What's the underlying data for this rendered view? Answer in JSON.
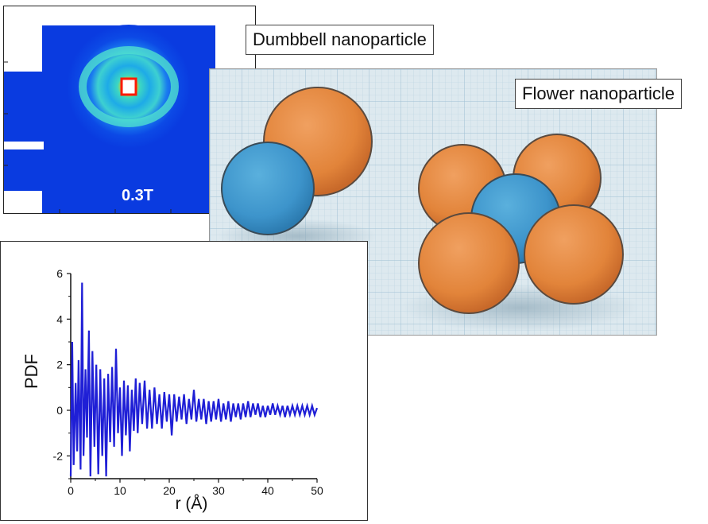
{
  "saxs": {
    "field_label": "0.3T",
    "colors": {
      "background": "#0a3be0",
      "ring": "#33d1d6",
      "center": "#ff2a00"
    }
  },
  "labels": {
    "dumbbell": "Dumbbell nanoparticle",
    "flower": "Flower nanoparticle"
  },
  "scene": {
    "colors": {
      "orange_sphere": "#e48b3c",
      "blue_sphere": "#3f98cf",
      "grid": "#dde9ef"
    }
  },
  "chart_data": {
    "type": "line",
    "xlabel": "r (Å)",
    "ylabel": "PDF",
    "xlim": [
      0,
      50
    ],
    "ylim": [
      -3,
      6
    ],
    "xticks": [
      0,
      10,
      20,
      30,
      40,
      50
    ],
    "yticks": [
      -2,
      0,
      2,
      4,
      6
    ],
    "line_color": "#1f1fd6",
    "series": [
      {
        "x": [
          0,
          0.3,
          0.6,
          1.0,
          1.3,
          1.6,
          2.0,
          2.3,
          2.6,
          3.0,
          3.3,
          3.7,
          4.0,
          4.4,
          4.8,
          5.2,
          5.6,
          6.0,
          6.4,
          6.8,
          7.2,
          7.6,
          8.0,
          8.4,
          8.8,
          9.2,
          9.6,
          10.0,
          10.4,
          10.8,
          11.2,
          11.6,
          12.0,
          12.4,
          12.8,
          13.2,
          13.6,
          14.0,
          14.5,
          15.0,
          15.5,
          16.0,
          16.5,
          17.0,
          17.5,
          18.0,
          18.5,
          19.0,
          19.5,
          20.0,
          20.5,
          21.0,
          21.5,
          22.0,
          22.5,
          23.0,
          23.5,
          24.0,
          24.5,
          25.0,
          25.5,
          26.0,
          26.5,
          27.0,
          27.5,
          28.0,
          28.5,
          29.0,
          29.5,
          30.0,
          30.5,
          31.0,
          31.5,
          32.0,
          32.5,
          33.0,
          33.5,
          34.0,
          34.5,
          35.0,
          35.5,
          36.0,
          36.5,
          37.0,
          37.5,
          38.0,
          38.5,
          39.0,
          39.5,
          40.0,
          40.5,
          41.0,
          41.5,
          42.0,
          42.5,
          43.0,
          43.5,
          44.0,
          44.5,
          45.0,
          45.5,
          46.0,
          46.5,
          47.0,
          47.5,
          48.0,
          48.5,
          49.0,
          49.5,
          50.0
        ],
        "y": [
          -2.9,
          3.0,
          -2.4,
          1.2,
          -1.8,
          2.2,
          -2.6,
          5.6,
          -2.0,
          1.8,
          -1.2,
          3.5,
          -2.9,
          2.6,
          -1.6,
          2.0,
          -2.8,
          1.8,
          -2.0,
          1.4,
          -2.9,
          1.6,
          -1.4,
          1.9,
          -1.6,
          2.7,
          -1.0,
          1.0,
          -2.0,
          1.3,
          -1.1,
          1.1,
          -1.8,
          0.9,
          -0.9,
          1.4,
          -1.0,
          1.2,
          -0.6,
          1.3,
          -0.8,
          0.9,
          -0.8,
          1.0,
          -0.6,
          0.7,
          -0.8,
          0.8,
          -0.5,
          0.7,
          -1.1,
          0.7,
          -0.5,
          0.6,
          -0.4,
          0.7,
          -0.6,
          0.5,
          -0.4,
          0.9,
          -0.5,
          0.5,
          -0.4,
          0.5,
          -0.6,
          0.4,
          -0.5,
          0.4,
          -0.4,
          0.5,
          -0.5,
          0.3,
          -0.4,
          0.4,
          -0.5,
          0.3,
          -0.3,
          0.3,
          -0.4,
          0.3,
          -0.3,
          0.4,
          -0.3,
          0.3,
          -0.2,
          0.3,
          -0.3,
          0.2,
          -0.3,
          0.2,
          -0.2,
          0.3,
          -0.2,
          0.2,
          -0.2,
          0.2,
          -0.3,
          0.2,
          -0.2,
          0.2,
          -0.2,
          0.2,
          -0.2,
          0.2,
          -0.2,
          0.2,
          -0.2,
          0.2,
          -0.2,
          0.1
        ]
      }
    ]
  }
}
